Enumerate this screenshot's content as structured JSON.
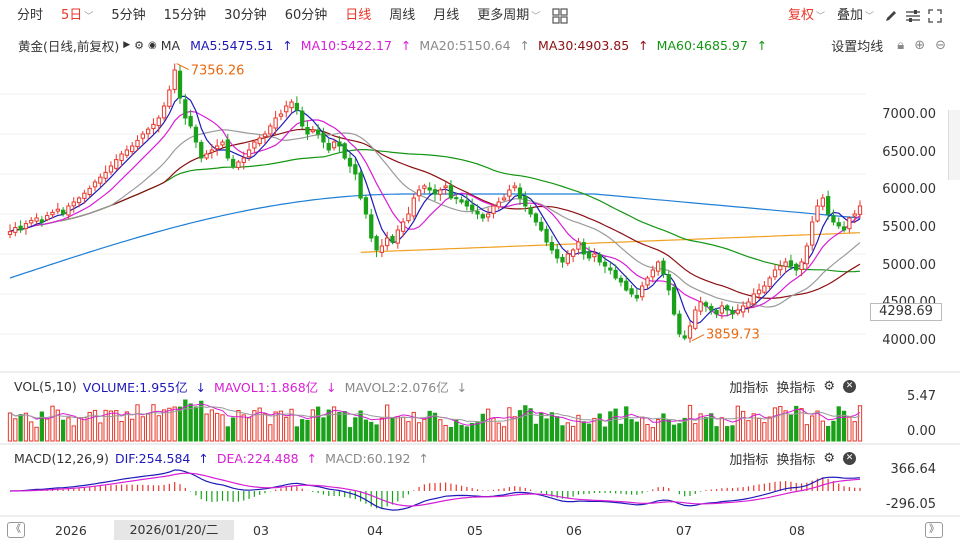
{
  "toolbar": {
    "periods": [
      {
        "label": "分时",
        "active": false
      },
      {
        "label": "5日",
        "active": true,
        "dropdown": true
      },
      {
        "label": "5分钟",
        "active": false
      },
      {
        "label": "15分钟",
        "active": false
      },
      {
        "label": "30分钟",
        "active": false
      },
      {
        "label": "60分钟",
        "active": false
      },
      {
        "label": "日线",
        "active": true
      },
      {
        "label": "周线",
        "active": false
      },
      {
        "label": "月线",
        "active": false
      },
      {
        "label": "更多周期",
        "active": false,
        "dropdown": true
      }
    ],
    "fuquan": "复权",
    "overlay": "叠加",
    "icons": [
      "grid-icon",
      "pen-icon",
      "settings-lines-icon",
      "fullscreen-icon"
    ]
  },
  "main_legend": {
    "name": "黄金(日线,前复权)",
    "ma_label": "MA",
    "items": [
      {
        "text": "MA5:5475.51",
        "arrow": "↑",
        "color": "#1f1ab8"
      },
      {
        "text": "MA10:5422.17",
        "arrow": "↑",
        "color": "#d81ed6"
      },
      {
        "text": "MA20:5150.64",
        "arrow": "↑",
        "color": "#9a9a9a"
      },
      {
        "text": "MA30:4903.85",
        "arrow": "↑",
        "color": "#8b0f12"
      },
      {
        "text": "MA60:4685.97",
        "arrow": "↑",
        "color": "#149614"
      }
    ],
    "settings": "设置均线"
  },
  "vol_legend": {
    "label": "VOL(5,10)",
    "items": [
      {
        "text": "VOLUME:1.955亿",
        "arrow": "↓",
        "color": "#1f1ab8"
      },
      {
        "text": "MAVOL1:1.868亿",
        "arrow": "↓",
        "color": "#d81ed6"
      },
      {
        "text": "MAVOL2:2.076亿",
        "arrow": "↓",
        "color": "#888888"
      }
    ],
    "add": "加指标",
    "swap": "换指标"
  },
  "macd_legend": {
    "label": "MACD(12,26,9)",
    "items": [
      {
        "text": "DIF:254.584",
        "arrow": "↑",
        "color": "#1f1ab8"
      },
      {
        "text": "DEA:224.488",
        "arrow": "↑",
        "color": "#d81ed6"
      },
      {
        "text": "MACD:60.192",
        "arrow": "↑",
        "color": "#888888"
      }
    ],
    "add": "加指标",
    "swap": "换指标"
  },
  "price_axis": [
    "7000.00",
    "6500.00",
    "6000.00",
    "5500.00",
    "5000.00",
    "4500.00",
    "4000.00"
  ],
  "vol_axis": [
    "5.47",
    "0.00"
  ],
  "macd_axis": [
    "366.64",
    "-296.05"
  ],
  "last_price": "4298.69",
  "high_annotation": "7356.26",
  "low_annotation": "3859.73",
  "x_axis": {
    "year_label": "2026",
    "cursor_date": "2026/01/20/二",
    "months": [
      "03",
      "04",
      "05",
      "06",
      "07",
      "08"
    ]
  },
  "colors": {
    "up": "#e8372b",
    "down": "#1aa11a",
    "active": "#e8372b"
  },
  "chart_data": {
    "type": "candlestick",
    "series": [
      {
        "name": "MA5",
        "value": 5475.51
      },
      {
        "name": "MA10",
        "value": 5422.17
      },
      {
        "name": "MA20",
        "value": 5150.64
      },
      {
        "name": "MA30",
        "value": 4903.85
      },
      {
        "name": "MA60",
        "value": 4685.97
      }
    ],
    "ylim": [
      3800,
      7400
    ],
    "closes": [
      5280,
      5330,
      5300,
      5380,
      5420,
      5450,
      5400,
      5480,
      5520,
      5560,
      5500,
      5600,
      5650,
      5700,
      5760,
      5820,
      5900,
      5960,
      6020,
      6100,
      6180,
      6250,
      6300,
      6350,
      6420,
      6500,
      6560,
      6620,
      6700,
      6850,
      7050,
      7300,
      6950,
      6700,
      6600,
      6400,
      6200,
      6250,
      6300,
      6350,
      6400,
      6200,
      6100,
      6150,
      6200,
      6300,
      6400,
      6450,
      6500,
      6600,
      6700,
      6750,
      6850,
      6900,
      6800,
      6600,
      6500,
      6550,
      6500,
      6400,
      6300,
      6400,
      6350,
      6200,
      6100,
      6000,
      5700,
      5500,
      5200,
      5050,
      5100,
      5200,
      5150,
      5300,
      5400,
      5500,
      5700,
      5800,
      5850,
      5800,
      5750,
      5800,
      5850,
      5700,
      5700,
      5650,
      5600,
      5550,
      5500,
      5450,
      5500,
      5600,
      5650,
      5700,
      5800,
      5850,
      5700,
      5600,
      5500,
      5400,
      5300,
      5150,
      5050,
      4950,
      4900,
      5000,
      5050,
      5150,
      5000,
      4950,
      5000,
      4900,
      4850,
      4800,
      4700,
      4650,
      4550,
      4500,
      4450,
      4600,
      4700,
      4800,
      4900,
      4750,
      4550,
      4250,
      4000,
      3950,
      4100,
      4300,
      4400,
      4350,
      4300,
      4250,
      4350,
      4300,
      4250,
      4300,
      4350,
      4400,
      4500,
      4550,
      4600,
      4700,
      4800,
      4850,
      4900,
      4850,
      4800,
      4900,
      5100,
      5400,
      5600,
      5700,
      5500,
      5400,
      5350,
      5300,
      5450,
      5500,
      5600
    ]
  }
}
